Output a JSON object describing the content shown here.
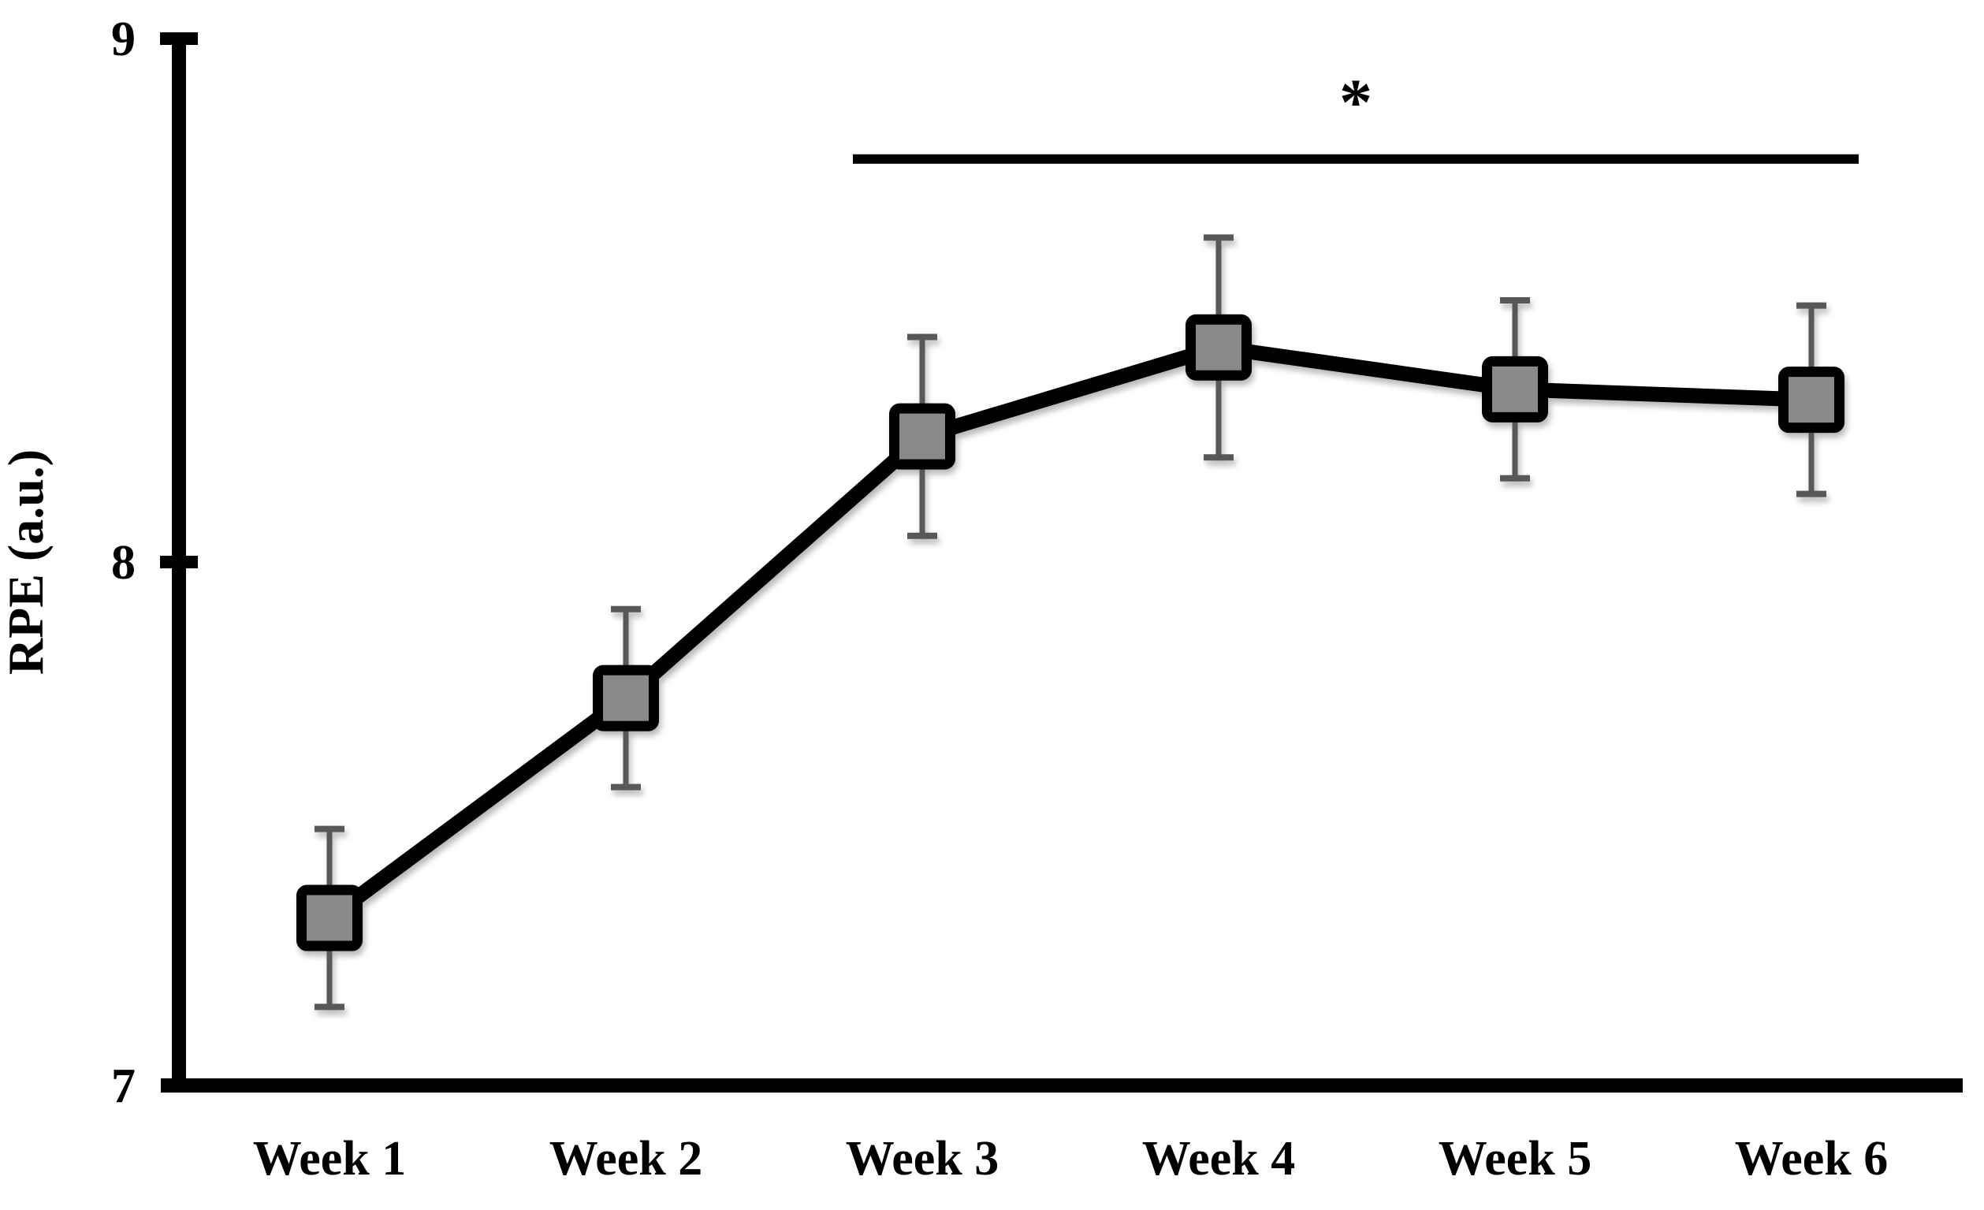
{
  "chart_data": {
    "type": "line",
    "title": "",
    "xlabel": "",
    "ylabel": "RPE (a.u.)",
    "categories": [
      "Week 1",
      "Week 2",
      "Week 3",
      "Week 4",
      "Week 5",
      "Week 6"
    ],
    "series": [
      {
        "name": "RPE",
        "values": [
          7.32,
          7.74,
          8.24,
          8.41,
          8.33,
          8.31
        ],
        "errors": [
          0.17,
          0.17,
          0.19,
          0.21,
          0.17,
          0.18
        ],
        "marker": "square"
      }
    ],
    "ylim": [
      7,
      9
    ],
    "yticks": [
      7,
      8,
      9
    ],
    "grid": false,
    "legend": false,
    "annotation": {
      "symbol": "*",
      "spans_categories": [
        "Week 3",
        "Week 6"
      ],
      "y_value": 8.77
    }
  },
  "colors": {
    "line": "#000000",
    "axis": "#000000",
    "marker_fill": "#898989",
    "marker_border": "#000000",
    "error_bar": "#595959",
    "text": "#000000",
    "background": "#ffffff"
  }
}
